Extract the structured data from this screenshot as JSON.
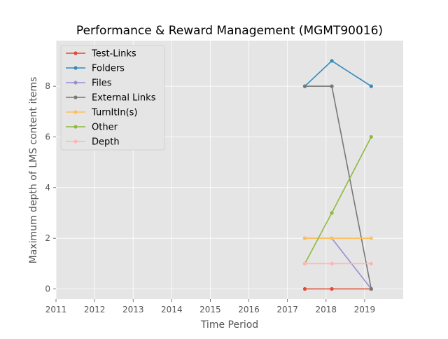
{
  "chart_data": {
    "type": "line",
    "title": "Performance & Reward Management (MGMT90016)",
    "xlabel": "Time Period",
    "ylabel": "Maximum depth of LMS content items",
    "xlim": [
      2011,
      2020
    ],
    "ylim": [
      -0.4,
      9.8
    ],
    "xticks": [
      2011,
      2012,
      2013,
      2014,
      2015,
      2016,
      2017,
      2018,
      2019
    ],
    "xtick_labels": [
      "2011",
      "2012",
      "2013",
      "2014",
      "2015",
      "2016",
      "2017",
      "2018",
      "2019"
    ],
    "yticks": [
      0,
      2,
      4,
      6,
      8
    ],
    "ytick_labels": [
      "0",
      "2",
      "4",
      "6",
      "8"
    ],
    "grid": true,
    "legend_position": "upper-left",
    "x": [
      2017.45,
      2018.15,
      2019.17
    ],
    "series": [
      {
        "name": "Test-Links",
        "color": "#E24A33",
        "values": [
          0,
          0,
          0
        ]
      },
      {
        "name": "Folders",
        "color": "#348ABD",
        "values": [
          8,
          9,
          8
        ]
      },
      {
        "name": "Files",
        "color": "#988ED5",
        "values": [
          2,
          2,
          0
        ]
      },
      {
        "name": "External Links",
        "color": "#777777",
        "values": [
          8,
          8,
          0
        ]
      },
      {
        "name": "TurnItIn(s)",
        "color": "#FBC15E",
        "values": [
          2,
          2,
          2
        ]
      },
      {
        "name": "Other",
        "color": "#8EBA42",
        "values": [
          1,
          3,
          6
        ]
      },
      {
        "name": "Depth",
        "color": "#FFB5B8",
        "values": [
          1,
          1,
          1
        ]
      }
    ],
    "colors": {
      "plot_background": "#E5E5E5",
      "grid": "#FFFFFF",
      "text": "#555555"
    }
  }
}
